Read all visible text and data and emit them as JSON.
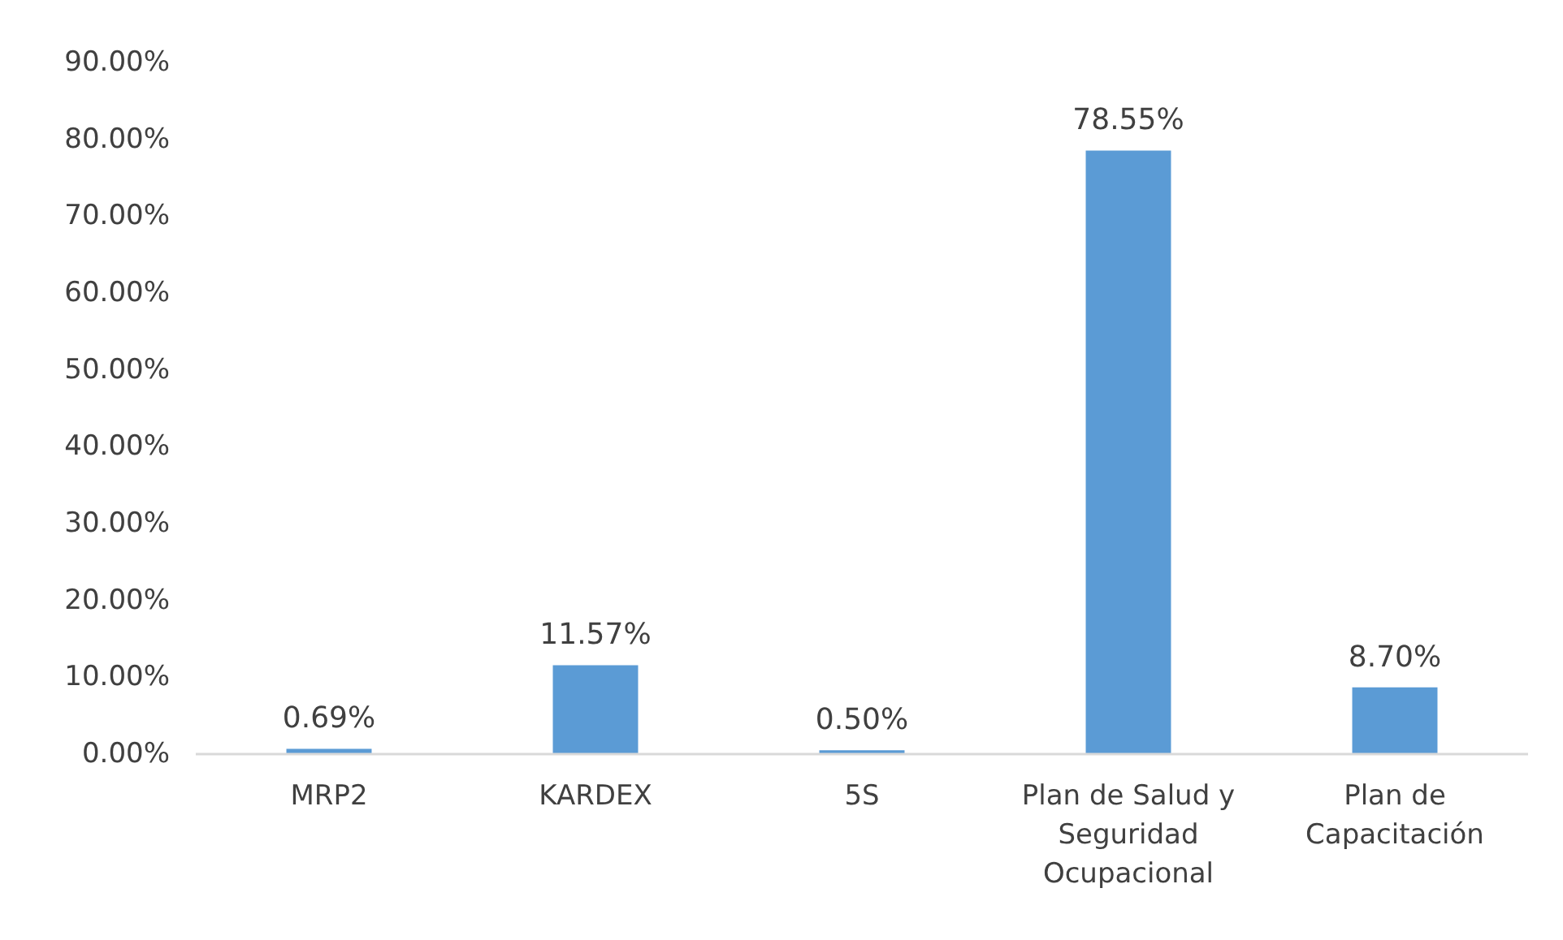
{
  "chart_data": {
    "type": "bar",
    "categories": [
      "MRP2",
      "KARDEX",
      "5S",
      "Plan de Salud y Seguridad Ocupacional",
      "Plan de Capacitación"
    ],
    "values": [
      0.69,
      11.57,
      0.5,
      78.55,
      8.7
    ],
    "value_labels": [
      "0.69%",
      "11.57%",
      "0.50%",
      "78.55%",
      "8.70%"
    ],
    "color": "#5b9bd5",
    "ylim": [
      0,
      90
    ],
    "yticks": [
      {
        "value": 0,
        "label": "0.00%"
      },
      {
        "value": 10,
        "label": "10.00%"
      },
      {
        "value": 20,
        "label": "20.00%"
      },
      {
        "value": 30,
        "label": "30.00%"
      },
      {
        "value": 40,
        "label": "40.00%"
      },
      {
        "value": 50,
        "label": "50.00%"
      },
      {
        "value": 60,
        "label": "60.00%"
      },
      {
        "value": 70,
        "label": "70.00%"
      },
      {
        "value": 80,
        "label": "80.00%"
      },
      {
        "value": 90,
        "label": "90.00%"
      }
    ]
  }
}
